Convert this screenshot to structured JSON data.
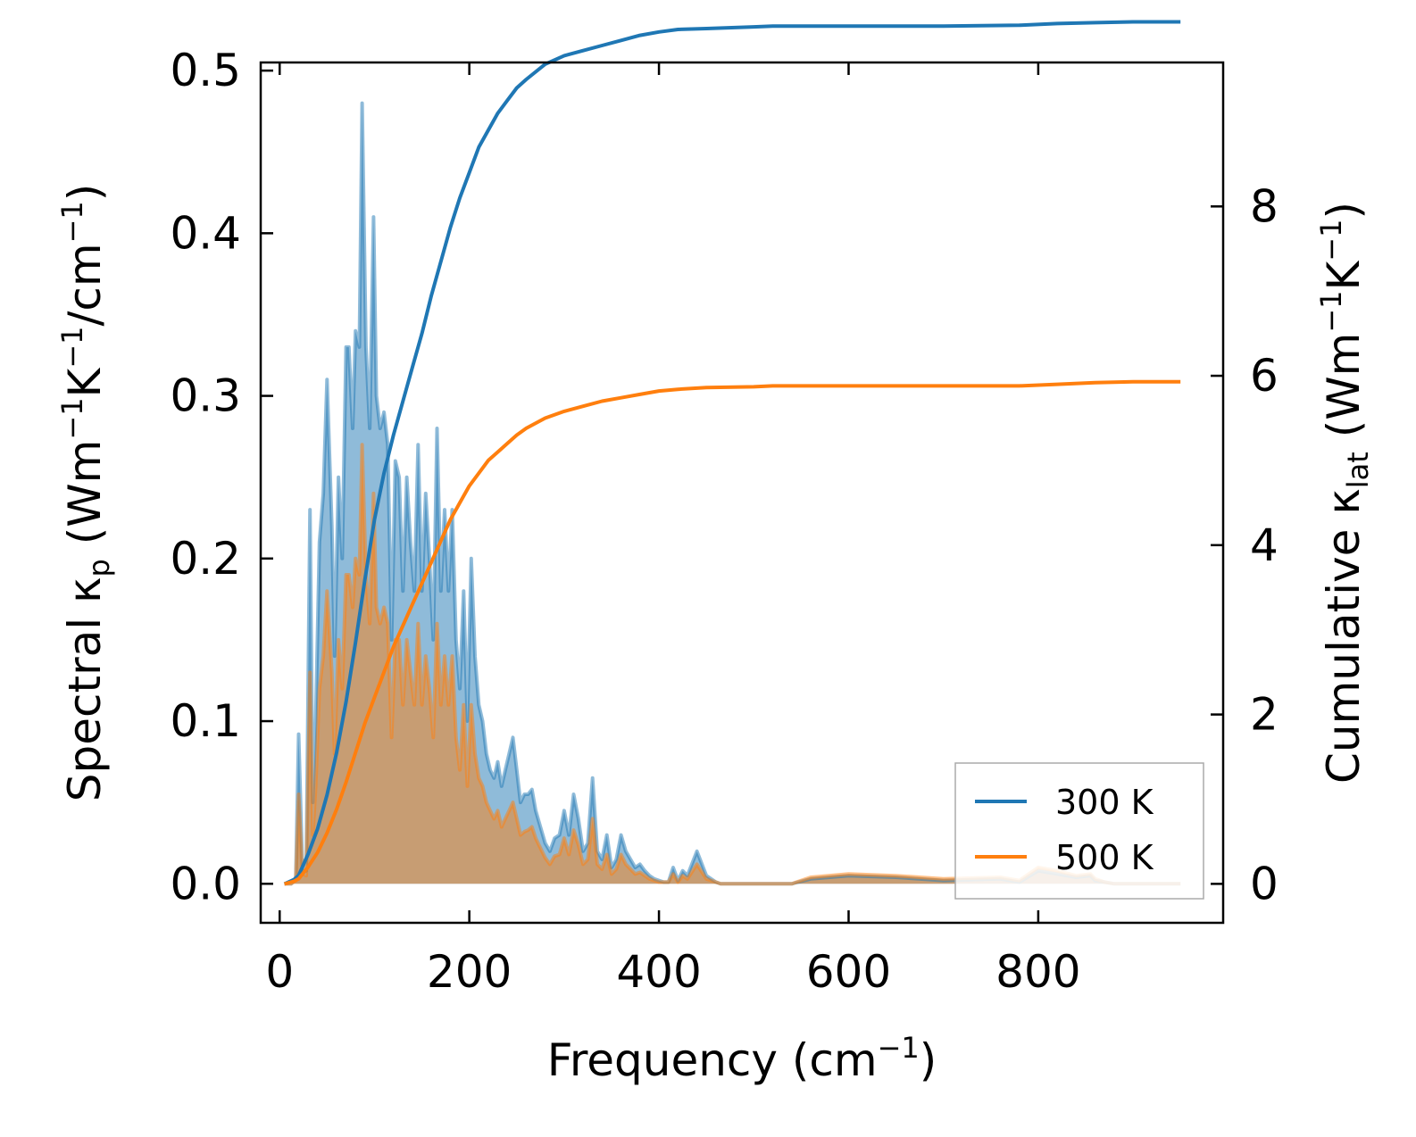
{
  "chart_data": {
    "type": "line",
    "xlabel": "Frequency (cm⁻¹)",
    "ylabel_left": "Spectral κp (Wm⁻¹K⁻¹/cm⁻¹)",
    "ylabel_right": "Cumulative κlat (Wm⁻¹K⁻¹)",
    "xlim": [
      -20,
      995
    ],
    "ylim_left": [
      -0.024,
      0.505
    ],
    "ylim_right": [
      -0.46,
      9.7
    ],
    "x_ticks": [
      0,
      200,
      400,
      600,
      800
    ],
    "y_left_ticks": [
      0.0,
      0.1,
      0.2,
      0.3,
      0.4,
      0.5
    ],
    "y_right_ticks": [
      0,
      2,
      4,
      6,
      8
    ],
    "labels": {
      "xlabel_main": "Frequency (cm",
      "xlabel_sup": "−1",
      "xlabel_end": ")",
      "yl_1": "Spectral κ",
      "yl_sub": "p",
      "yl_2": " (Wm",
      "yl_sup1": "−1",
      "yl_3": "K",
      "yl_sup2": "−1",
      "yl_4": "/cm",
      "yl_sup3": "−1",
      "yl_5": ")",
      "yr_1": "Cumulative κ",
      "yr_sub": "lat",
      "yr_2": " (Wm",
      "yr_sup1": "−1",
      "yr_3": "K",
      "yr_sup2": "−1",
      "yr_4": ")"
    },
    "legend": {
      "location": "lower-right",
      "entries": [
        "300 K",
        "500 K"
      ]
    },
    "colors": {
      "s300": "#1f77b4",
      "s500": "#ff7f0e",
      "fill300": "#1f77b4",
      "fill500": "#ff7f0e"
    },
    "spectral_series": [
      {
        "name": "300 K",
        "x": [
          5,
          12,
          17,
          20,
          24,
          28,
          32,
          35,
          38,
          42,
          46,
          50,
          55,
          58,
          62,
          66,
          70,
          73,
          77,
          80,
          84,
          87,
          91,
          95,
          99,
          102,
          106,
          110,
          114,
          118,
          122,
          126,
          130,
          134,
          138,
          142,
          146,
          150,
          154,
          158,
          162,
          166,
          170,
          174,
          178,
          182,
          186,
          190,
          194,
          198,
          202,
          206,
          210,
          214,
          218,
          222,
          226,
          230,
          234,
          238,
          242,
          246,
          250,
          254,
          258,
          262,
          266,
          270,
          275,
          280,
          285,
          290,
          295,
          300,
          305,
          310,
          315,
          320,
          325,
          330,
          335,
          340,
          345,
          350,
          355,
          360,
          365,
          370,
          375,
          380,
          385,
          390,
          395,
          400,
          405,
          410,
          415,
          420,
          425,
          430,
          440,
          450,
          460,
          465,
          470,
          480,
          490,
          495,
          500,
          505,
          510,
          520,
          530,
          540,
          560,
          600,
          650,
          700,
          760,
          780,
          800,
          820,
          840,
          855,
          860,
          870,
          880,
          890,
          900,
          950
        ],
        "values": [
          0,
          0,
          0.003,
          0.092,
          0.01,
          0.008,
          0.23,
          0.05,
          0.1,
          0.21,
          0.24,
          0.31,
          0.22,
          0.14,
          0.25,
          0.2,
          0.33,
          0.33,
          0.28,
          0.34,
          0.33,
          0.48,
          0.33,
          0.28,
          0.41,
          0.3,
          0.28,
          0.29,
          0.27,
          0.15,
          0.26,
          0.25,
          0.18,
          0.25,
          0.21,
          0.18,
          0.27,
          0.18,
          0.24,
          0.2,
          0.15,
          0.28,
          0.18,
          0.23,
          0.18,
          0.23,
          0.15,
          0.12,
          0.18,
          0.1,
          0.2,
          0.14,
          0.11,
          0.1,
          0.08,
          0.07,
          0.065,
          0.075,
          0.06,
          0.07,
          0.08,
          0.09,
          0.07,
          0.05,
          0.055,
          0.055,
          0.058,
          0.045,
          0.035,
          0.025,
          0.02,
          0.028,
          0.03,
          0.045,
          0.03,
          0.055,
          0.04,
          0.02,
          0.025,
          0.065,
          0.02,
          0.015,
          0.03,
          0.01,
          0.015,
          0.03,
          0.02,
          0.015,
          0.01,
          0.012,
          0.008,
          0.005,
          0.003,
          0.002,
          0.001,
          0.001,
          0.01,
          0.002,
          0.008,
          0.005,
          0.02,
          0.005,
          0.001,
          0,
          0,
          0,
          0,
          0,
          0,
          0,
          0,
          0,
          0,
          0,
          0.003,
          0.005,
          0.004,
          0.002,
          0.003,
          0.001,
          0.008,
          0.006,
          0.004,
          0.005,
          0.002,
          0.001,
          0,
          0,
          0,
          0
        ]
      },
      {
        "name": "500 K",
        "x": [
          5,
          12,
          17,
          20,
          24,
          28,
          32,
          35,
          38,
          42,
          46,
          50,
          55,
          58,
          62,
          66,
          70,
          73,
          77,
          80,
          84,
          87,
          91,
          95,
          99,
          102,
          106,
          110,
          114,
          118,
          122,
          126,
          130,
          134,
          138,
          142,
          146,
          150,
          154,
          158,
          162,
          166,
          170,
          174,
          178,
          182,
          186,
          190,
          194,
          198,
          202,
          206,
          210,
          214,
          218,
          222,
          226,
          230,
          234,
          238,
          242,
          246,
          250,
          254,
          258,
          262,
          266,
          270,
          275,
          280,
          285,
          290,
          295,
          300,
          305,
          310,
          315,
          320,
          325,
          330,
          335,
          340,
          345,
          350,
          355,
          360,
          365,
          370,
          375,
          380,
          385,
          390,
          395,
          400,
          405,
          410,
          415,
          420,
          425,
          430,
          440,
          450,
          460,
          465,
          470,
          480,
          490,
          495,
          500,
          505,
          510,
          520,
          530,
          540,
          560,
          600,
          650,
          700,
          760,
          780,
          800,
          820,
          840,
          855,
          860,
          870,
          880,
          890,
          900,
          950
        ],
        "values": [
          0,
          0,
          0.002,
          0.055,
          0.006,
          0.005,
          0.13,
          0.03,
          0.06,
          0.12,
          0.14,
          0.18,
          0.13,
          0.08,
          0.15,
          0.12,
          0.19,
          0.19,
          0.17,
          0.2,
          0.19,
          0.27,
          0.19,
          0.16,
          0.24,
          0.17,
          0.16,
          0.17,
          0.16,
          0.09,
          0.15,
          0.15,
          0.11,
          0.15,
          0.13,
          0.11,
          0.16,
          0.11,
          0.14,
          0.12,
          0.09,
          0.16,
          0.11,
          0.14,
          0.11,
          0.14,
          0.09,
          0.07,
          0.11,
          0.06,
          0.11,
          0.08,
          0.065,
          0.06,
          0.05,
          0.045,
          0.04,
          0.045,
          0.035,
          0.04,
          0.045,
          0.05,
          0.04,
          0.03,
          0.032,
          0.033,
          0.035,
          0.028,
          0.022,
          0.016,
          0.012,
          0.017,
          0.018,
          0.028,
          0.018,
          0.033,
          0.024,
          0.012,
          0.015,
          0.04,
          0.012,
          0.009,
          0.018,
          0.006,
          0.009,
          0.018,
          0.012,
          0.009,
          0.006,
          0.007,
          0.005,
          0.003,
          0.002,
          0.001,
          0.001,
          0.001,
          0.006,
          0.001,
          0.005,
          0.003,
          0.012,
          0.003,
          0.001,
          0,
          0,
          0,
          0,
          0,
          0,
          0,
          0,
          0,
          0,
          0,
          0.004,
          0.006,
          0.005,
          0.003,
          0.004,
          0.002,
          0.01,
          0.008,
          0.005,
          0.006,
          0.003,
          0.001,
          0,
          0,
          0,
          0
        ]
      }
    ],
    "cumulative_series": [
      {
        "name": "300 K",
        "x": [
          5,
          15,
          20,
          30,
          40,
          50,
          60,
          70,
          80,
          90,
          100,
          110,
          120,
          130,
          140,
          150,
          160,
          170,
          180,
          190,
          200,
          210,
          220,
          230,
          240,
          250,
          260,
          280,
          300,
          320,
          340,
          360,
          380,
          400,
          420,
          450,
          500,
          520,
          600,
          700,
          780,
          820,
          860,
          900,
          950
        ],
        "values": [
          0,
          0.05,
          0.1,
          0.35,
          0.65,
          1.05,
          1.55,
          2.15,
          2.85,
          3.6,
          4.3,
          4.85,
          5.3,
          5.7,
          6.1,
          6.5,
          6.95,
          7.35,
          7.75,
          8.1,
          8.4,
          8.7,
          8.9,
          9.1,
          9.25,
          9.4,
          9.5,
          9.68,
          9.78,
          9.84,
          9.9,
          9.96,
          10.02,
          10.06,
          10.09,
          10.1,
          10.12,
          10.13,
          10.13,
          10.13,
          10.14,
          10.16,
          10.17,
          10.18,
          10.18
        ]
      },
      {
        "name": "500 K",
        "x": [
          5,
          15,
          20,
          30,
          40,
          50,
          60,
          70,
          80,
          90,
          100,
          110,
          120,
          130,
          140,
          150,
          160,
          170,
          180,
          190,
          200,
          210,
          220,
          230,
          240,
          250,
          260,
          280,
          300,
          320,
          340,
          360,
          380,
          400,
          420,
          450,
          500,
          520,
          600,
          700,
          780,
          820,
          860,
          900,
          950
        ],
        "values": [
          0,
          0.03,
          0.06,
          0.2,
          0.37,
          0.6,
          0.88,
          1.2,
          1.55,
          1.9,
          2.2,
          2.5,
          2.8,
          3.05,
          3.3,
          3.55,
          3.8,
          4.05,
          4.3,
          4.5,
          4.7,
          4.85,
          5.0,
          5.1,
          5.2,
          5.3,
          5.38,
          5.5,
          5.58,
          5.64,
          5.7,
          5.74,
          5.78,
          5.82,
          5.84,
          5.86,
          5.87,
          5.88,
          5.88,
          5.88,
          5.88,
          5.9,
          5.92,
          5.93,
          5.93
        ]
      }
    ]
  }
}
